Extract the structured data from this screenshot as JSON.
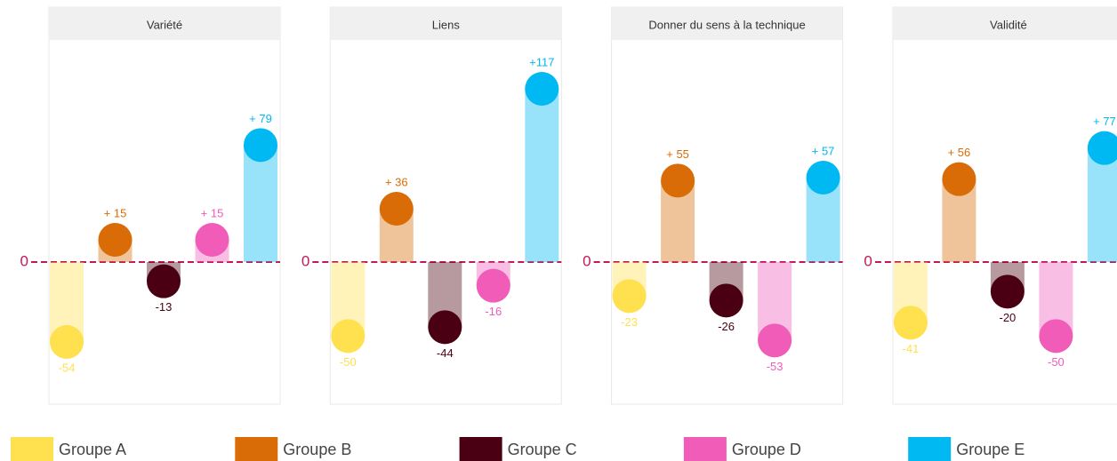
{
  "chart_data": {
    "type": "bar",
    "categories": [
      "Variété",
      "Liens",
      "Donner du sens à la technique",
      "Validité"
    ],
    "ylim": [
      -96,
      150
    ],
    "yticks": [
      0
    ],
    "series": [
      {
        "name": "Groupe A",
        "color": "#ffe04f",
        "values": [
          -54,
          -50,
          -23,
          -41
        ],
        "value_labels": [
          "-54",
          "-50",
          "-23",
          "-41"
        ]
      },
      {
        "name": "Groupe B",
        "color": "#d96c06",
        "values": [
          15,
          36,
          55,
          56
        ],
        "value_labels": [
          "+ 15",
          "+ 36",
          "+ 55",
          "+ 56"
        ]
      },
      {
        "name": "Groupe C",
        "color": "#4a0012",
        "values": [
          -13,
          -44,
          -26,
          -20
        ],
        "value_labels": [
          "-13",
          "-44",
          "-26",
          "-20"
        ]
      },
      {
        "name": "Groupe D",
        "color": "#f05cb8",
        "values": [
          15,
          -16,
          -53,
          -50
        ],
        "value_labels": [
          "+ 15",
          "-16",
          "-53",
          "-50"
        ]
      },
      {
        "name": "Groupe E",
        "color": "#00b9f2",
        "values": [
          79,
          117,
          57,
          77
        ],
        "value_labels": [
          "+ 79",
          "+117",
          "+ 57",
          "+ 77"
        ]
      }
    ]
  }
}
